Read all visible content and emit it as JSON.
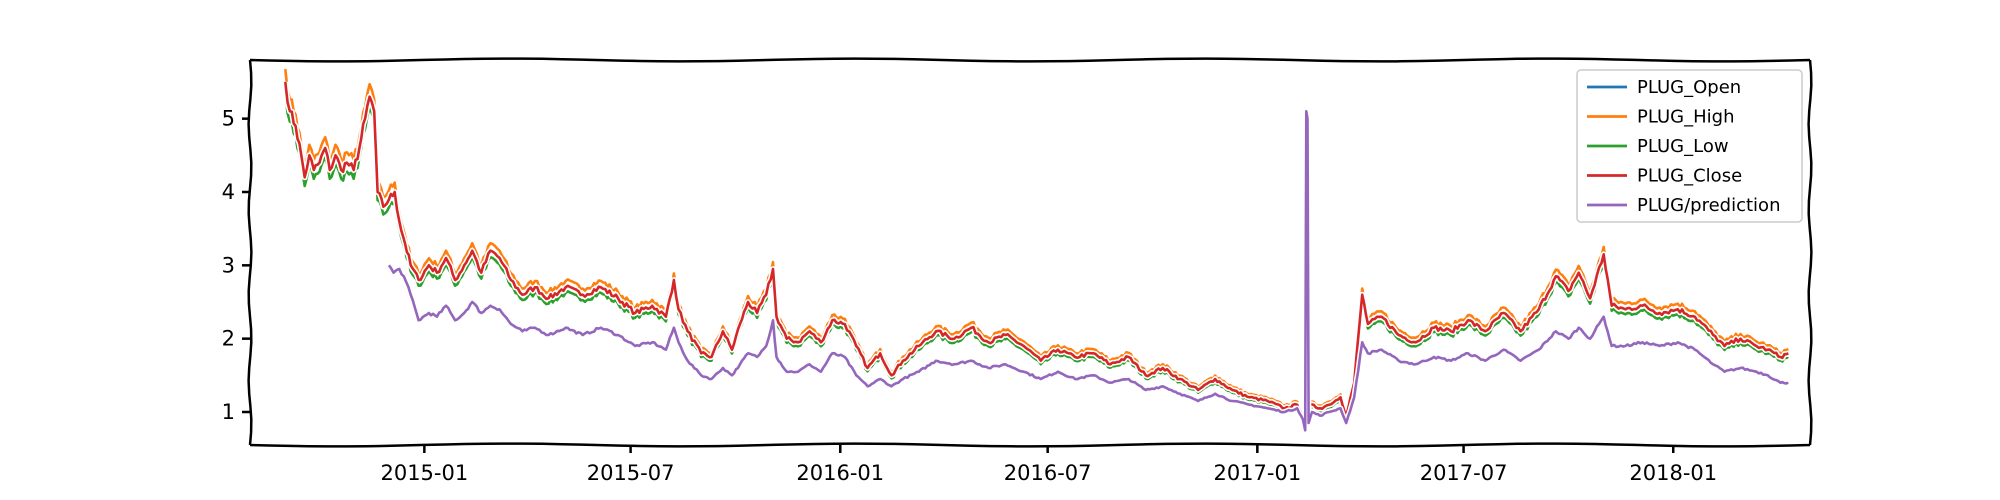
{
  "chart_data": {
    "type": "line",
    "title": "",
    "xlabel": "",
    "ylabel": "",
    "xlim": [
      "2014-08-01",
      "2018-05-01"
    ],
    "ylim": [
      0.55,
      5.8
    ],
    "x_ticks": [
      "2015-01",
      "2015-07",
      "2016-01",
      "2016-07",
      "2017-01",
      "2017-07",
      "2018-01"
    ],
    "y_ticks": [
      1,
      2,
      3,
      4,
      5
    ],
    "legend_position": "top-right",
    "grid": false,
    "style": "xkcd",
    "series": [
      {
        "name": "PLUG_Open",
        "color": "#1f77b4",
        "points": [
          [
            "2014-09-01",
            5.5
          ],
          [
            "2014-09-05",
            5.1
          ],
          [
            "2014-09-10",
            4.9
          ],
          [
            "2014-09-15",
            4.5
          ],
          [
            "2014-09-18",
            4.2
          ],
          [
            "2014-09-22",
            4.5
          ],
          [
            "2014-09-26",
            4.3
          ],
          [
            "2014-10-01",
            4.4
          ],
          [
            "2014-10-06",
            4.6
          ],
          [
            "2014-10-10",
            4.3
          ],
          [
            "2014-10-15",
            4.5
          ],
          [
            "2014-10-20",
            4.3
          ],
          [
            "2014-10-25",
            4.4
          ],
          [
            "2014-10-31",
            4.3
          ],
          [
            "2014-11-05",
            4.6
          ],
          [
            "2014-11-10",
            5.0
          ],
          [
            "2014-11-14",
            5.3
          ],
          [
            "2014-11-18",
            5.1
          ],
          [
            "2014-11-21",
            4.0
          ],
          [
            "2014-11-26",
            3.8
          ],
          [
            "2014-12-01",
            3.9
          ],
          [
            "2014-12-06",
            4.0
          ],
          [
            "2014-12-10",
            3.6
          ],
          [
            "2014-12-15",
            3.3
          ],
          [
            "2014-12-20",
            3.0
          ],
          [
            "2014-12-27",
            2.8
          ],
          [
            "2015-01-05",
            3.0
          ],
          [
            "2015-01-12",
            2.9
          ],
          [
            "2015-01-20",
            3.1
          ],
          [
            "2015-01-28",
            2.8
          ],
          [
            "2015-02-05",
            3.0
          ],
          [
            "2015-02-12",
            3.2
          ],
          [
            "2015-02-20",
            2.9
          ],
          [
            "2015-02-28",
            3.2
          ],
          [
            "2015-03-08",
            3.1
          ],
          [
            "2015-03-18",
            2.8
          ],
          [
            "2015-03-28",
            2.6
          ],
          [
            "2015-04-08",
            2.7
          ],
          [
            "2015-04-20",
            2.55
          ],
          [
            "2015-05-05",
            2.7
          ],
          [
            "2015-05-20",
            2.6
          ],
          [
            "2015-06-05",
            2.7
          ],
          [
            "2015-06-20",
            2.55
          ],
          [
            "2015-07-05",
            2.35
          ],
          [
            "2015-07-20",
            2.45
          ],
          [
            "2015-08-01",
            2.3
          ],
          [
            "2015-08-08",
            2.8
          ],
          [
            "2015-08-12",
            2.4
          ],
          [
            "2015-08-20",
            2.1
          ],
          [
            "2015-09-01",
            1.8
          ],
          [
            "2015-09-10",
            1.75
          ],
          [
            "2015-09-20",
            2.1
          ],
          [
            "2015-09-28",
            1.85
          ],
          [
            "2015-10-05",
            2.2
          ],
          [
            "2015-10-12",
            2.5
          ],
          [
            "2015-10-20",
            2.35
          ],
          [
            "2015-10-28",
            2.6
          ],
          [
            "2015-11-03",
            2.95
          ],
          [
            "2015-11-06",
            2.3
          ],
          [
            "2015-11-15",
            2.0
          ],
          [
            "2015-11-25",
            1.95
          ],
          [
            "2015-12-05",
            2.1
          ],
          [
            "2015-12-15",
            1.95
          ],
          [
            "2015-12-25",
            2.25
          ],
          [
            "2016-01-05",
            2.2
          ],
          [
            "2016-01-15",
            1.9
          ],
          [
            "2016-01-25",
            1.6
          ],
          [
            "2016-02-05",
            1.8
          ],
          [
            "2016-02-15",
            1.5
          ],
          [
            "2016-02-25",
            1.7
          ],
          [
            "2016-03-10",
            1.9
          ],
          [
            "2016-03-25",
            2.1
          ],
          [
            "2016-04-10",
            2.0
          ],
          [
            "2016-04-25",
            2.15
          ],
          [
            "2016-05-10",
            1.95
          ],
          [
            "2016-05-25",
            2.05
          ],
          [
            "2016-06-10",
            1.9
          ],
          [
            "2016-06-25",
            1.7
          ],
          [
            "2016-07-10",
            1.85
          ],
          [
            "2016-07-25",
            1.75
          ],
          [
            "2016-08-10",
            1.8
          ],
          [
            "2016-08-25",
            1.65
          ],
          [
            "2016-09-10",
            1.75
          ],
          [
            "2016-09-25",
            1.5
          ],
          [
            "2016-10-10",
            1.6
          ],
          [
            "2016-10-25",
            1.45
          ],
          [
            "2016-11-10",
            1.3
          ],
          [
            "2016-11-25",
            1.45
          ],
          [
            "2016-12-10",
            1.3
          ],
          [
            "2016-12-25",
            1.2
          ],
          [
            "2017-01-10",
            1.15
          ],
          [
            "2017-01-25",
            1.05
          ],
          [
            "2017-02-05",
            1.1
          ],
          [
            "2017-02-12",
            0.9
          ],
          [
            "2017-02-16",
            1.1
          ],
          [
            "2017-02-25",
            1.05
          ],
          [
            "2017-03-05",
            1.1
          ],
          [
            "2017-03-15",
            1.2
          ],
          [
            "2017-03-20",
            0.95
          ],
          [
            "2017-03-27",
            1.4
          ],
          [
            "2017-04-03",
            2.6
          ],
          [
            "2017-04-08",
            2.2
          ],
          [
            "2017-04-20",
            2.3
          ],
          [
            "2017-05-05",
            2.05
          ],
          [
            "2017-05-20",
            1.95
          ],
          [
            "2017-06-05",
            2.15
          ],
          [
            "2017-06-20",
            2.1
          ],
          [
            "2017-07-05",
            2.25
          ],
          [
            "2017-07-20",
            2.1
          ],
          [
            "2017-08-05",
            2.35
          ],
          [
            "2017-08-20",
            2.1
          ],
          [
            "2017-09-05",
            2.4
          ],
          [
            "2017-09-20",
            2.85
          ],
          [
            "2017-10-01",
            2.65
          ],
          [
            "2017-10-10",
            2.9
          ],
          [
            "2017-10-20",
            2.55
          ],
          [
            "2017-11-01",
            3.15
          ],
          [
            "2017-11-08",
            2.45
          ],
          [
            "2017-11-20",
            2.4
          ],
          [
            "2017-12-05",
            2.45
          ],
          [
            "2017-12-20",
            2.35
          ],
          [
            "2018-01-05",
            2.4
          ],
          [
            "2018-01-20",
            2.3
          ],
          [
            "2018-02-05",
            2.05
          ],
          [
            "2018-02-15",
            1.9
          ],
          [
            "2018-03-01",
            2.0
          ],
          [
            "2018-03-15",
            1.9
          ],
          [
            "2018-03-25",
            1.85
          ],
          [
            "2018-04-05",
            1.75
          ],
          [
            "2018-04-12",
            1.8
          ]
        ]
      },
      {
        "name": "PLUG_High",
        "color": "#ff7f0e",
        "offset": 0.08
      },
      {
        "name": "PLUG_Low",
        "color": "#2ca02c",
        "offset": -0.07
      },
      {
        "name": "PLUG_Close",
        "color": "#d62728",
        "offset": 0.0
      },
      {
        "name": "PLUG/prediction",
        "color": "#9467bd",
        "points": [
          [
            "2014-12-01",
            3.0
          ],
          [
            "2014-12-05",
            2.9
          ],
          [
            "2014-12-10",
            2.95
          ],
          [
            "2014-12-14",
            2.85
          ],
          [
            "2014-12-20",
            2.6
          ],
          [
            "2014-12-27",
            2.25
          ],
          [
            "2015-01-05",
            2.35
          ],
          [
            "2015-01-12",
            2.3
          ],
          [
            "2015-01-20",
            2.45
          ],
          [
            "2015-01-28",
            2.25
          ],
          [
            "2015-02-05",
            2.35
          ],
          [
            "2015-02-12",
            2.5
          ],
          [
            "2015-02-20",
            2.35
          ],
          [
            "2015-02-28",
            2.45
          ],
          [
            "2015-03-08",
            2.4
          ],
          [
            "2015-03-18",
            2.2
          ],
          [
            "2015-03-28",
            2.1
          ],
          [
            "2015-04-08",
            2.15
          ],
          [
            "2015-04-20",
            2.05
          ],
          [
            "2015-05-05",
            2.15
          ],
          [
            "2015-05-20",
            2.05
          ],
          [
            "2015-06-05",
            2.15
          ],
          [
            "2015-06-20",
            2.05
          ],
          [
            "2015-07-05",
            1.9
          ],
          [
            "2015-07-20",
            1.95
          ],
          [
            "2015-08-01",
            1.85
          ],
          [
            "2015-08-08",
            2.15
          ],
          [
            "2015-08-12",
            1.95
          ],
          [
            "2015-08-20",
            1.7
          ],
          [
            "2015-09-01",
            1.5
          ],
          [
            "2015-09-10",
            1.45
          ],
          [
            "2015-09-20",
            1.6
          ],
          [
            "2015-09-28",
            1.5
          ],
          [
            "2015-10-05",
            1.65
          ],
          [
            "2015-10-12",
            1.8
          ],
          [
            "2015-10-20",
            1.75
          ],
          [
            "2015-10-28",
            1.9
          ],
          [
            "2015-11-03",
            2.25
          ],
          [
            "2015-11-06",
            1.75
          ],
          [
            "2015-11-15",
            1.55
          ],
          [
            "2015-11-25",
            1.55
          ],
          [
            "2015-12-05",
            1.65
          ],
          [
            "2015-12-15",
            1.55
          ],
          [
            "2015-12-25",
            1.8
          ],
          [
            "2016-01-05",
            1.75
          ],
          [
            "2016-01-15",
            1.5
          ],
          [
            "2016-01-25",
            1.35
          ],
          [
            "2016-02-05",
            1.45
          ],
          [
            "2016-02-15",
            1.35
          ],
          [
            "2016-02-25",
            1.45
          ],
          [
            "2016-03-10",
            1.55
          ],
          [
            "2016-03-25",
            1.7
          ],
          [
            "2016-04-10",
            1.65
          ],
          [
            "2016-04-25",
            1.7
          ],
          [
            "2016-05-10",
            1.6
          ],
          [
            "2016-05-25",
            1.65
          ],
          [
            "2016-06-10",
            1.55
          ],
          [
            "2016-06-25",
            1.45
          ],
          [
            "2016-07-10",
            1.55
          ],
          [
            "2016-07-25",
            1.45
          ],
          [
            "2016-08-10",
            1.5
          ],
          [
            "2016-08-25",
            1.4
          ],
          [
            "2016-09-10",
            1.45
          ],
          [
            "2016-09-25",
            1.3
          ],
          [
            "2016-10-10",
            1.35
          ],
          [
            "2016-10-25",
            1.25
          ],
          [
            "2016-11-10",
            1.15
          ],
          [
            "2016-11-25",
            1.25
          ],
          [
            "2016-12-10",
            1.15
          ],
          [
            "2016-12-25",
            1.1
          ],
          [
            "2017-01-10",
            1.05
          ],
          [
            "2017-01-25",
            1.0
          ],
          [
            "2017-02-05",
            1.05
          ],
          [
            "2017-02-10",
            0.9
          ],
          [
            "2017-02-12",
            0.75
          ],
          [
            "2017-02-13",
            5.1
          ],
          [
            "2017-02-14",
            5.0
          ],
          [
            "2017-02-15",
            0.85
          ],
          [
            "2017-02-18",
            1.0
          ],
          [
            "2017-02-25",
            0.95
          ],
          [
            "2017-03-05",
            1.0
          ],
          [
            "2017-03-15",
            1.05
          ],
          [
            "2017-03-20",
            0.85
          ],
          [
            "2017-03-27",
            1.2
          ],
          [
            "2017-04-03",
            1.95
          ],
          [
            "2017-04-08",
            1.8
          ],
          [
            "2017-04-20",
            1.85
          ],
          [
            "2017-05-05",
            1.7
          ],
          [
            "2017-05-20",
            1.65
          ],
          [
            "2017-06-05",
            1.75
          ],
          [
            "2017-06-20",
            1.7
          ],
          [
            "2017-07-05",
            1.8
          ],
          [
            "2017-07-20",
            1.7
          ],
          [
            "2017-08-05",
            1.85
          ],
          [
            "2017-08-20",
            1.7
          ],
          [
            "2017-09-05",
            1.85
          ],
          [
            "2017-09-20",
            2.1
          ],
          [
            "2017-10-01",
            2.0
          ],
          [
            "2017-10-10",
            2.15
          ],
          [
            "2017-10-20",
            2.0
          ],
          [
            "2017-11-01",
            2.3
          ],
          [
            "2017-11-08",
            1.9
          ],
          [
            "2017-11-20",
            1.9
          ],
          [
            "2017-12-05",
            1.95
          ],
          [
            "2017-12-20",
            1.9
          ],
          [
            "2018-01-05",
            1.95
          ],
          [
            "2018-01-20",
            1.85
          ],
          [
            "2018-02-05",
            1.65
          ],
          [
            "2018-02-15",
            1.55
          ],
          [
            "2018-03-01",
            1.6
          ],
          [
            "2018-03-15",
            1.55
          ],
          [
            "2018-03-25",
            1.5
          ],
          [
            "2018-04-05",
            1.4
          ],
          [
            "2018-04-12",
            1.4
          ]
        ]
      }
    ]
  }
}
